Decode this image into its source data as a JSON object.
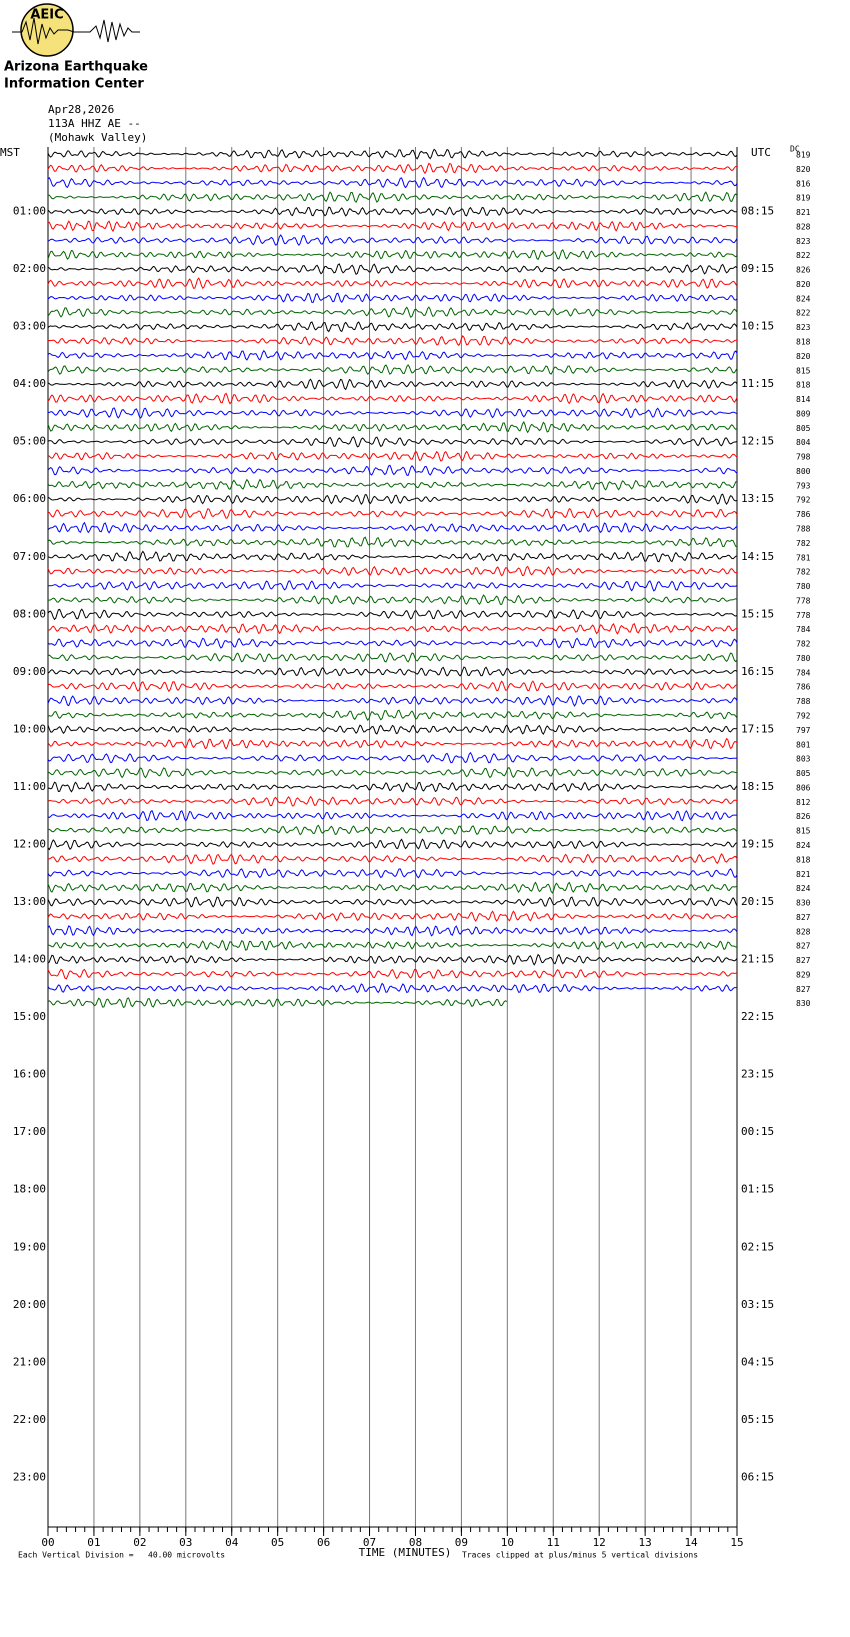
{
  "header": {
    "logo_text": "AEIC",
    "org_line1": "Arizona Earthquake",
    "org_line2": "Information Center",
    "date": "Apr28,2026",
    "station": "113A HHZ AE --",
    "location": "(Mohawk Valley)"
  },
  "chart_data": {
    "type": "helicorder",
    "left_axis_title": "MST",
    "right_axis_title": "UTC",
    "dc_title": "DC",
    "left_labels": [
      "01:00",
      "02:00",
      "03:00",
      "04:00",
      "05:00",
      "06:00",
      "07:00",
      "08:00",
      "09:00",
      "10:00",
      "11:00",
      "12:00",
      "13:00",
      "14:00",
      "15:00",
      "16:00",
      "17:00",
      "18:00",
      "19:00",
      "20:00",
      "21:00",
      "22:00",
      "23:00"
    ],
    "right_labels": [
      "08:15",
      "09:15",
      "10:15",
      "11:15",
      "12:15",
      "13:15",
      "14:15",
      "15:15",
      "16:15",
      "17:15",
      "18:15",
      "19:15",
      "20:15",
      "21:15",
      "22:15",
      "23:15",
      "00:15",
      "01:15",
      "02:15",
      "03:15",
      "04:15",
      "05:15",
      "06:15"
    ],
    "dc_values": [
      819,
      820,
      816,
      819,
      821,
      828,
      823,
      822,
      826,
      820,
      824,
      822,
      823,
      818,
      820,
      815,
      818,
      814,
      809,
      805,
      804,
      798,
      800,
      793,
      792,
      786,
      788,
      782,
      781,
      782,
      780,
      778,
      778,
      784,
      782,
      780,
      784,
      786,
      788,
      792,
      797,
      801,
      803,
      805,
      806,
      812,
      826,
      815,
      824,
      818,
      821,
      824,
      830,
      827,
      828,
      827,
      827,
      829,
      827,
      830
    ],
    "trace_colors": [
      "#000000",
      "#ff0000",
      "#0000ff",
      "#006400"
    ],
    "xlim": [
      0,
      15
    ],
    "xticks": [
      {
        "value": 0,
        "label": "00"
      },
      {
        "value": 1,
        "label": "01"
      },
      {
        "value": 2,
        "label": "02"
      },
      {
        "value": 3,
        "label": "03"
      },
      {
        "value": 4,
        "label": "04"
      },
      {
        "value": 5,
        "label": "05"
      },
      {
        "value": 6,
        "label": "06"
      },
      {
        "value": 7,
        "label": "07"
      },
      {
        "value": 8,
        "label": "08"
      },
      {
        "value": 9,
        "label": "09"
      },
      {
        "value": 10,
        "label": "10"
      },
      {
        "value": 11,
        "label": "11"
      },
      {
        "value": 12,
        "label": "12"
      },
      {
        "value": 13,
        "label": "13"
      },
      {
        "value": 14,
        "label": "14"
      },
      {
        "value": 15,
        "label": "15"
      }
    ],
    "x_label": "TIME (MINUTES)",
    "last_trace_end": 10,
    "grid": true
  },
  "footer": {
    "scale_note": "Each Vertical Division =   40.00 microvolts",
    "clip_note": "Traces clipped at plus/minus 5 vertical divisions"
  }
}
